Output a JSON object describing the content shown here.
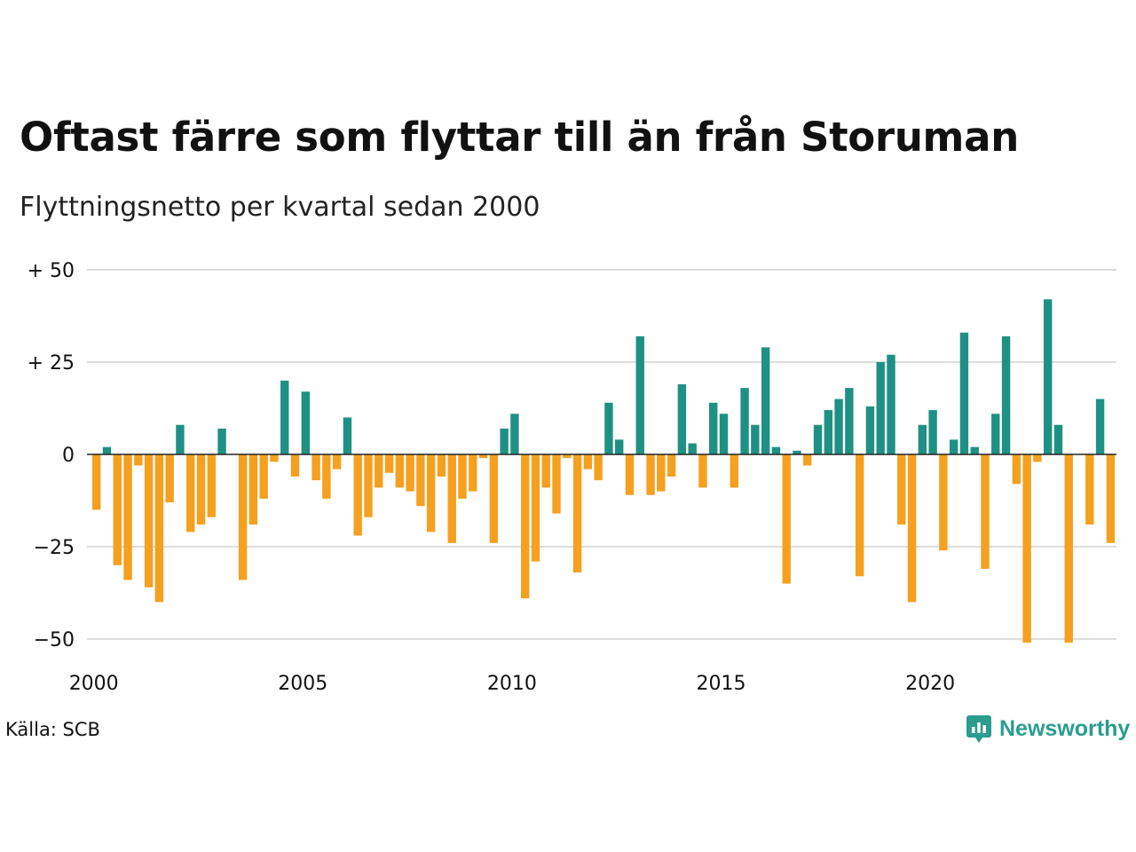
{
  "header": {
    "title": "Oftast färre som flyttar till än från Storuman",
    "subtitle": "Flyttningsnetto per kvartal sedan 2000"
  },
  "footer": {
    "source": "Källa: SCB",
    "brand": "Newsworthy",
    "brand_icon": "bar-chart-icon"
  },
  "colors": {
    "positive": "#1f9184",
    "negative": "#f5a01f",
    "grid": "#dddddd",
    "brand": "#2a9d8f"
  },
  "chart_data": {
    "type": "bar",
    "title": "Oftast färre som flyttar till än från Storuman",
    "subtitle": "Flyttningsnetto per kvartal sedan 2000",
    "x_start": "2000 Q1",
    "x_ticks": [
      "2000",
      "2005",
      "2010",
      "2015",
      "2020"
    ],
    "y_ticks": [
      {
        "value": 50,
        "label": "+ 50"
      },
      {
        "value": 25,
        "label": "+ 25"
      },
      {
        "value": 0,
        "label": "0"
      },
      {
        "value": -25,
        "label": "−25"
      },
      {
        "value": -50,
        "label": "−50"
      }
    ],
    "ylim": [
      -52,
      50
    ],
    "grid": true,
    "legend": "none",
    "values": [
      -15,
      2,
      -30,
      -34,
      -3,
      -36,
      -40,
      -13,
      8,
      -21,
      -19,
      -17,
      7,
      0,
      -34,
      -19,
      -12,
      -2,
      20,
      -6,
      17,
      -7,
      -12,
      -4,
      10,
      -22,
      -17,
      -9,
      -5,
      -9,
      -10,
      -14,
      -21,
      -6,
      -24,
      -12,
      -10,
      -1,
      -24,
      7,
      11,
      -39,
      -29,
      -9,
      -16,
      -1,
      -32,
      -4,
      -7,
      14,
      4,
      -11,
      32,
      -11,
      -10,
      -6,
      19,
      3,
      -9,
      14,
      11,
      -9,
      18,
      8,
      29,
      2,
      -35,
      1,
      -3,
      8,
      12,
      15,
      18,
      -33,
      13,
      25,
      27,
      -19,
      -40,
      8,
      12,
      -26,
      4,
      33,
      2,
      -31,
      11,
      32,
      -8,
      -51,
      -2,
      42,
      8,
      -51,
      0,
      -19,
      15,
      -24
    ]
  }
}
